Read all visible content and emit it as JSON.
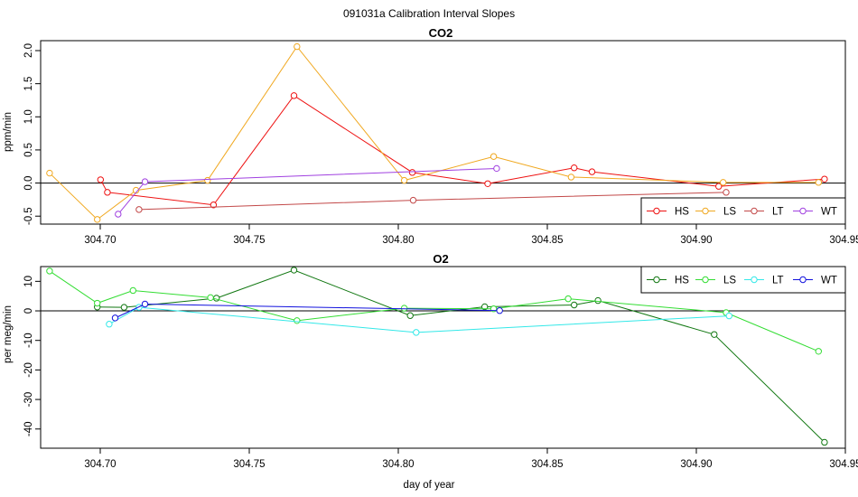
{
  "suptitle": "091031a   Calibration Interval Slopes",
  "chart_data": [
    {
      "type": "line",
      "title": "CO2",
      "xlabel": "",
      "ylabel": "ppm/min",
      "xlim": [
        304.68,
        304.95
      ],
      "ylim": [
        -0.62,
        2.15
      ],
      "xticks": [
        304.7,
        304.75,
        304.8,
        304.85,
        304.9,
        304.95
      ],
      "xtick_labels": [
        "304.70",
        "304.75",
        "304.80",
        "304.85",
        "304.90",
        "304.95"
      ],
      "yticks": [
        -0.5,
        0.0,
        0.5,
        1.0,
        1.5,
        2.0
      ],
      "ytick_labels": [
        "-0.5",
        "0.0",
        "0.5",
        "1.0",
        "1.5",
        "2.0"
      ],
      "hline": 0,
      "legend_position": "bottom-right",
      "series": [
        {
          "name": "HS",
          "color": "#ee1111",
          "x": [
            304.7001,
            304.7024,
            304.738,
            304.765,
            304.8047,
            304.83,
            304.859,
            304.865,
            304.9075,
            304.943
          ],
          "y": [
            0.05,
            -0.14,
            -0.33,
            1.32,
            0.16,
            -0.01,
            0.23,
            0.17,
            -0.05,
            0.06
          ]
        },
        {
          "name": "LS",
          "color": "#f0a820",
          "x": [
            304.683,
            304.699,
            304.712,
            304.736,
            304.766,
            304.802,
            304.832,
            304.858,
            304.909,
            304.941
          ],
          "y": [
            0.15,
            -0.55,
            -0.11,
            0.04,
            2.06,
            0.04,
            0.4,
            0.09,
            0.01,
            0.01
          ]
        },
        {
          "name": "LT",
          "color": "#c24848",
          "x": [
            304.713,
            304.805,
            304.91
          ],
          "y": [
            -0.4,
            -0.26,
            -0.14
          ]
        },
        {
          "name": "WT",
          "color": "#a040e0",
          "x": [
            304.706,
            304.715,
            304.833
          ],
          "y": [
            -0.47,
            0.02,
            0.22
          ]
        }
      ]
    },
    {
      "type": "line",
      "title": "O2",
      "xlabel": "day of year",
      "ylabel": "per meg/min",
      "xlim": [
        304.68,
        304.95
      ],
      "ylim": [
        -46.5,
        15.0
      ],
      "xticks": [
        304.7,
        304.75,
        304.8,
        304.85,
        304.9,
        304.95
      ],
      "xtick_labels": [
        "304.70",
        "304.75",
        "304.80",
        "304.85",
        "304.90",
        "304.95"
      ],
      "yticks": [
        -40,
        -30,
        -20,
        -10,
        0,
        10
      ],
      "ytick_labels": [
        "-40",
        "-30",
        "-20",
        "-10",
        "0",
        "10"
      ],
      "hline": 0,
      "legend_position": "top-right",
      "series": [
        {
          "name": "HS",
          "color": "#117711",
          "x": [
            304.699,
            304.708,
            304.739,
            304.765,
            304.804,
            304.829,
            304.859,
            304.867,
            304.906,
            304.943
          ],
          "y": [
            1.3,
            1.2,
            4.3,
            13.8,
            -1.6,
            1.4,
            2.0,
            3.5,
            -8.0,
            -44.5
          ]
        },
        {
          "name": "LS",
          "color": "#33dd33",
          "x": [
            304.683,
            304.699,
            304.711,
            304.737,
            304.766,
            304.802,
            304.832,
            304.857,
            304.91,
            304.941
          ],
          "y": [
            13.5,
            2.6,
            6.9,
            4.5,
            -3.3,
            0.9,
            0.7,
            4.1,
            -0.6,
            -13.7
          ]
        },
        {
          "name": "LT",
          "color": "#33e8e8",
          "x": [
            304.703,
            304.713,
            304.806,
            304.911
          ],
          "y": [
            -4.5,
            1.2,
            -7.3,
            -1.7
          ]
        },
        {
          "name": "WT",
          "color": "#1111dd",
          "x": [
            304.705,
            304.715,
            304.834
          ],
          "y": [
            -2.4,
            2.3,
            0.1
          ]
        }
      ]
    }
  ]
}
